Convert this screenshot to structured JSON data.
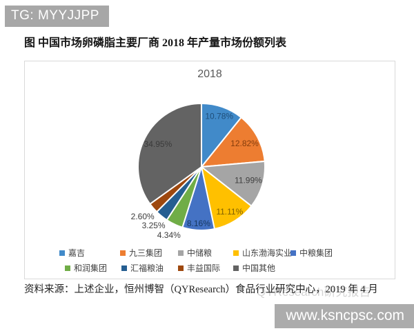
{
  "page": {
    "badge_top_left": "TG: MYYJJPP",
    "figure_title": "图 中国市场卵磷脂主要厂商 2018 年产量市场份额列表",
    "source_note": "资料来源：上述企业，恒州博智（QYResearch）食品行业研究中心，2019 年 4 月",
    "watermark": "QYResearch研究报告",
    "badge_bottom_right": "www.ksncpsc.com"
  },
  "chart_data": {
    "type": "pie",
    "title": "2018",
    "start_angle_deg": 0,
    "direction": "clockwise",
    "legend_position": "bottom",
    "slice_border_color": "#ffffff",
    "slices": [
      {
        "label": "嘉吉",
        "value": 10.78,
        "display": "10.78%",
        "color": "#418ac9",
        "label_color": "#1f4e79",
        "label_r": 0.84
      },
      {
        "label": "九三集团",
        "value": 12.82,
        "display": "12.82%",
        "color": "#ed7d31",
        "label_color": "#843c0c",
        "label_r": 0.77
      },
      {
        "label": "中储粮",
        "value": 11.99,
        "display": "11.99%",
        "color": "#a5a5a5",
        "label_color": "#404040",
        "label_r": 0.77
      },
      {
        "label": "山东渤海实业",
        "value": 11.11,
        "display": "11.11%",
        "color": "#ffc000",
        "label_color": "#7f6000",
        "label_r": 0.84
      },
      {
        "label": "中粮集团",
        "value": 8.16,
        "display": "8.16%",
        "color": "#4472c4",
        "label_color": "#17375e",
        "label_r": 0.9
      },
      {
        "label": "和润集团",
        "value": 4.34,
        "display": "4.34%",
        "color": "#70ad47",
        "label_color": "#3b3b3b",
        "label_r": 1.2
      },
      {
        "label": "汇福粮油",
        "value": 3.25,
        "display": "3.25%",
        "color": "#255e91",
        "label_color": "#3b3b3b",
        "label_r": 1.2
      },
      {
        "label": "丰益国际",
        "value": 2.6,
        "display": "2.60%",
        "color": "#9e480e",
        "label_color": "#3b3b3b",
        "label_r": 1.22
      },
      {
        "label": "中国其他",
        "value": 34.95,
        "display": "34.95%",
        "color": "#636363",
        "label_color": "#3a3a3a",
        "label_r": 0.77
      }
    ]
  }
}
